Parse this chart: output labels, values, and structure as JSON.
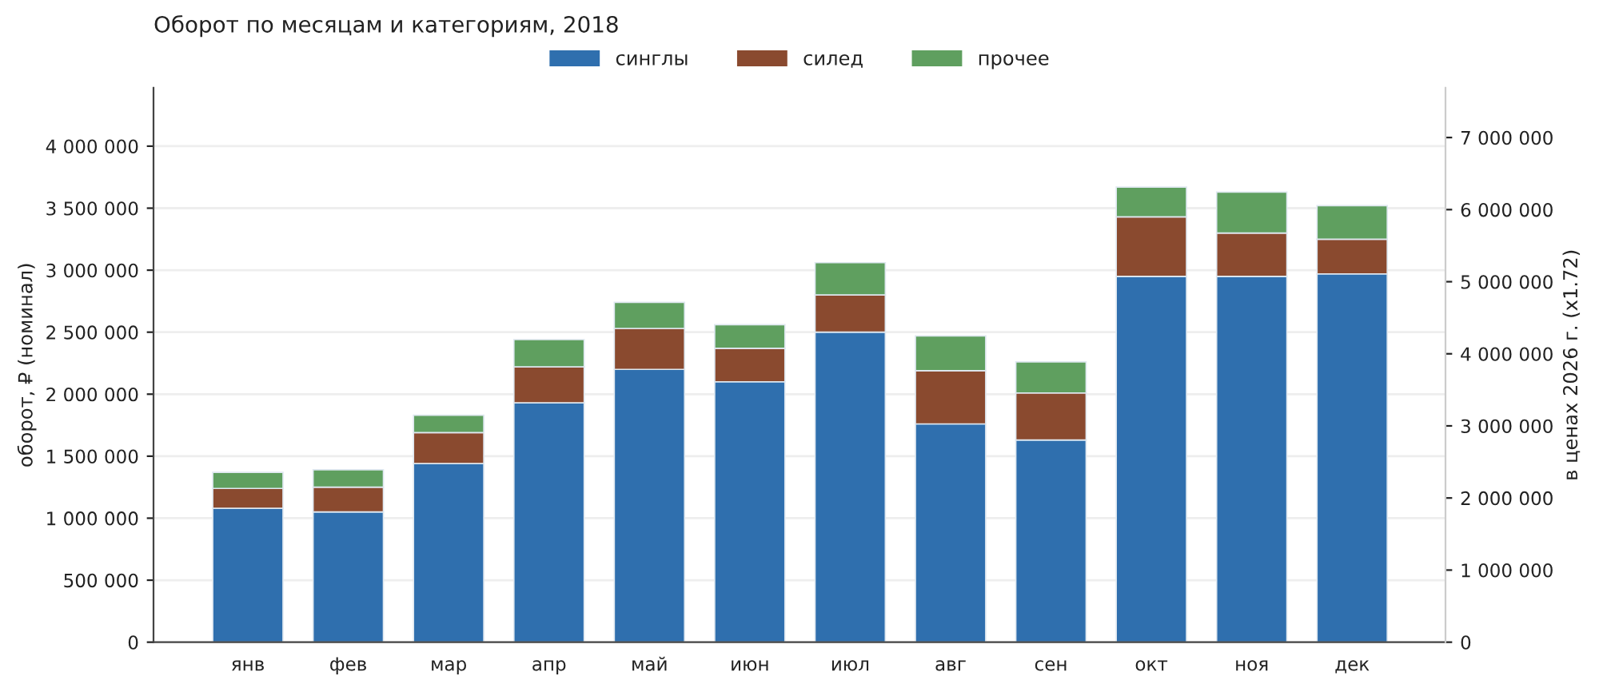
{
  "chart_data": {
    "type": "bar",
    "title": "Оборот по месяцам и категориям, 2018",
    "ylabel": "оборот, ₽ (номинал)",
    "y2label": "в ценах 2026 г. (x1.72)",
    "categories": [
      "янв",
      "фев",
      "мар",
      "апр",
      "май",
      "июн",
      "июл",
      "авг",
      "сен",
      "окт",
      "ноя",
      "дек"
    ],
    "series": [
      {
        "name": "синглы",
        "color": "#2f6fae",
        "values": [
          1080000,
          1050000,
          1440000,
          1930000,
          2200000,
          2100000,
          2500000,
          1760000,
          1630000,
          2950000,
          2950000,
          2970000
        ]
      },
      {
        "name": "силед",
        "color": "#8a4a2f",
        "values": [
          160000,
          200000,
          250000,
          290000,
          330000,
          270000,
          300000,
          430000,
          380000,
          480000,
          350000,
          280000
        ]
      },
      {
        "name": "прочее",
        "color": "#5f9f5f",
        "values": [
          130000,
          140000,
          140000,
          220000,
          210000,
          190000,
          260000,
          280000,
          250000,
          240000,
          330000,
          270000
        ]
      }
    ],
    "stacked": true,
    "ylim": [
      0,
      4470000
    ],
    "yticks": [
      0,
      {
        "value": 500000,
        "label": "500 000"
      },
      {
        "value": 1000000,
        "label": "1 000 000"
      },
      {
        "value": 1500000,
        "label": "1 500 000"
      },
      {
        "value": 2000000,
        "label": "2 000 000"
      },
      {
        "value": 2500000,
        "label": "2 500 000"
      },
      {
        "value": 3000000,
        "label": "3 000 000"
      },
      {
        "value": 3500000,
        "label": "3 500 000"
      },
      {
        "value": 4000000,
        "label": "4 000 000"
      }
    ],
    "y2lim": [
      0,
      7688400
    ],
    "y2ticks": [
      0,
      {
        "value": 1000000,
        "label": "1 000 000"
      },
      {
        "value": 2000000,
        "label": "2 000 000"
      },
      {
        "value": 3000000,
        "label": "3 000 000"
      },
      {
        "value": 4000000,
        "label": "4 000 000"
      },
      {
        "value": 5000000,
        "label": "5 000 000"
      },
      {
        "value": 6000000,
        "label": "6 000 000"
      },
      {
        "value": 7000000,
        "label": "7 000 000"
      }
    ],
    "grid": "y",
    "legend": "top"
  }
}
